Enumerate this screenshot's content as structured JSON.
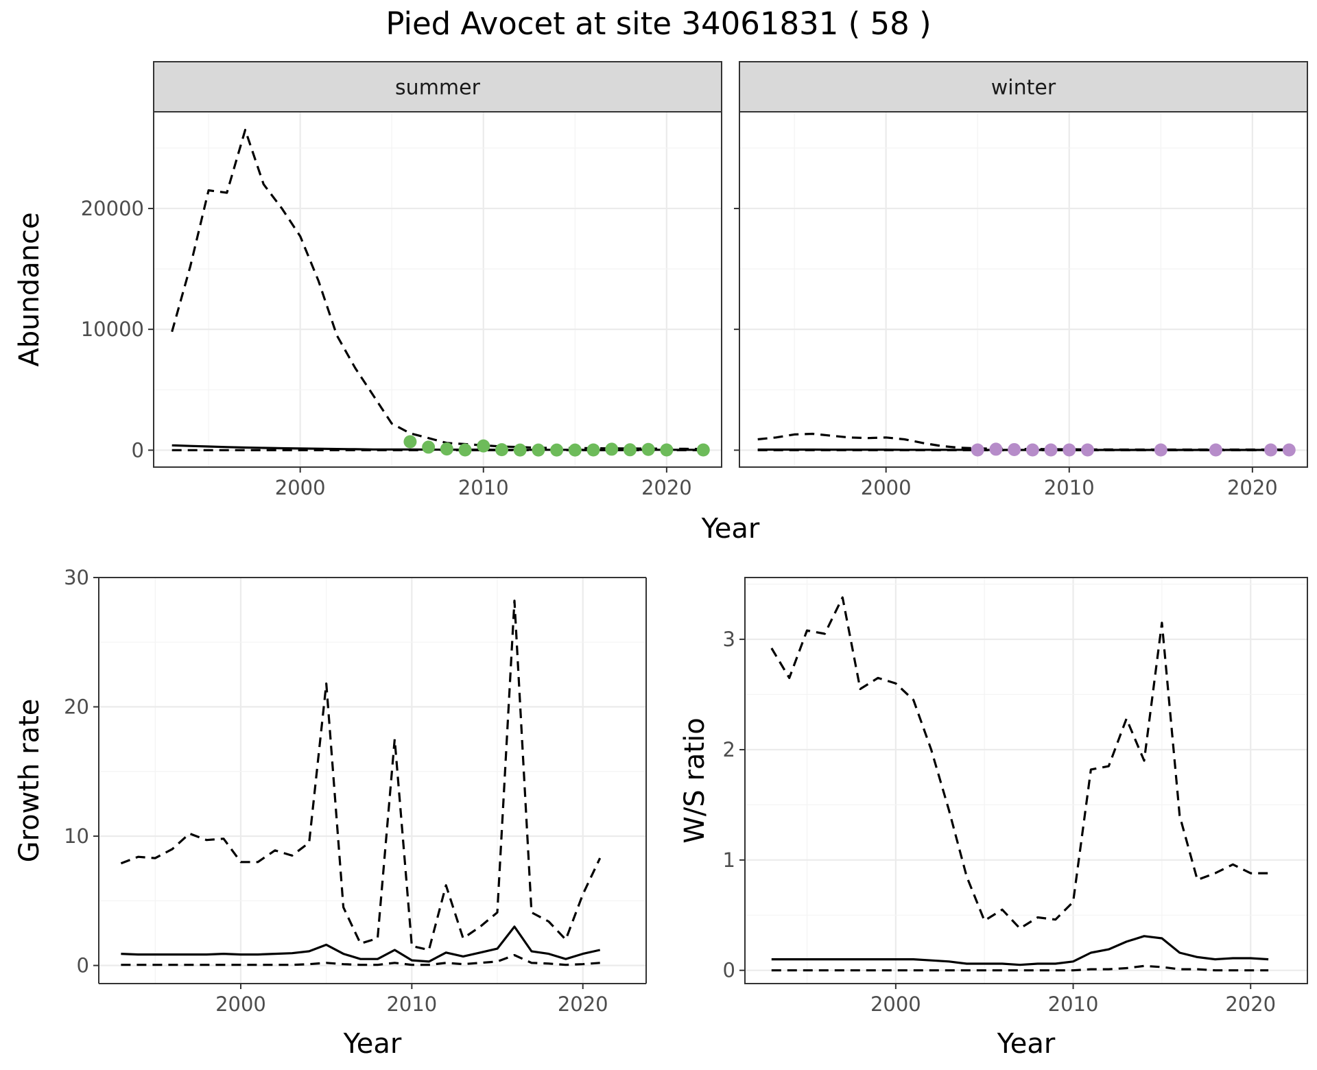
{
  "title": "Pied Avocet at site 34061831 ( 58 )",
  "colors": {
    "summer_points": "#6dbb5a",
    "winter_points": "#b68cc9"
  },
  "chart_data": [
    {
      "id": "abundance-summer",
      "type": "line",
      "facet": "summer",
      "ylabel": "Abundance",
      "xlabel": "Year",
      "xlim": [
        1992,
        2023
      ],
      "ylim": [
        -1400,
        28000
      ],
      "xticks": [
        2000,
        2010,
        2020
      ],
      "yticks": [
        0,
        10000,
        20000
      ],
      "grid": true,
      "x": [
        1993,
        1994,
        1995,
        1996,
        1997,
        1998,
        1999,
        2000,
        2001,
        2002,
        2003,
        2004,
        2005,
        2006,
        2007,
        2008,
        2009,
        2010,
        2011,
        2012,
        2013,
        2014,
        2015,
        2016,
        2017,
        2018,
        2019,
        2020,
        2021,
        2022
      ],
      "series": [
        {
          "role": "estimate",
          "values": [
            400,
            350,
            300,
            260,
            220,
            190,
            160,
            140,
            120,
            100,
            80,
            60,
            60,
            60,
            50,
            40,
            40,
            40,
            30,
            30,
            30,
            30,
            30,
            30,
            30,
            30,
            30,
            30,
            30,
            30
          ]
        },
        {
          "role": "upper",
          "values": [
            9800,
            15200,
            21500,
            21300,
            26500,
            22000,
            20000,
            17700,
            14000,
            9500,
            6800,
            4500,
            2200,
            1400,
            1000,
            600,
            500,
            400,
            300,
            250,
            200,
            180,
            170,
            160,
            150,
            140,
            130,
            120,
            110,
            100
          ]
        },
        {
          "role": "lower",
          "values": [
            0,
            0,
            0,
            0,
            0,
            0,
            0,
            0,
            0,
            0,
            0,
            0,
            0,
            0,
            0,
            0,
            0,
            0,
            0,
            0,
            0,
            0,
            0,
            0,
            0,
            0,
            0,
            0,
            0,
            0
          ]
        }
      ],
      "points": {
        "x": [
          2006,
          2007,
          2008,
          2009,
          2010,
          2011,
          2012,
          2013,
          2014,
          2015,
          2016,
          2017,
          2018,
          2019,
          2020,
          2022
        ],
        "y": [
          700,
          250,
          100,
          20,
          350,
          40,
          10,
          10,
          10,
          10,
          20,
          80,
          30,
          60,
          20,
          20
        ]
      }
    },
    {
      "id": "abundance-winter",
      "type": "line",
      "facet": "winter",
      "xlabel": "Year",
      "xlim": [
        1992,
        2023
      ],
      "ylim": [
        -1400,
        28000
      ],
      "xticks": [
        2000,
        2010,
        2020
      ],
      "grid": true,
      "x": [
        1993,
        1994,
        1995,
        1996,
        1997,
        1998,
        1999,
        2000,
        2001,
        2002,
        2003,
        2004,
        2005,
        2006,
        2007,
        2008,
        2009,
        2010,
        2011,
        2012,
        2013,
        2014,
        2015,
        2016,
        2017,
        2018,
        2019,
        2020,
        2021,
        2022
      ],
      "series": [
        {
          "role": "estimate",
          "values": [
            50,
            50,
            50,
            50,
            40,
            40,
            40,
            40,
            30,
            30,
            30,
            30,
            20,
            20,
            20,
            20,
            20,
            20,
            20,
            20,
            20,
            20,
            20,
            20,
            20,
            20,
            20,
            20,
            20,
            20
          ]
        },
        {
          "role": "upper",
          "values": [
            900,
            1050,
            1300,
            1350,
            1200,
            1050,
            1000,
            1050,
            900,
            600,
            350,
            200,
            150,
            120,
            100,
            90,
            80,
            70,
            60,
            60,
            50,
            50,
            50,
            50,
            50,
            50,
            50,
            50,
            50,
            50
          ]
        },
        {
          "role": "lower",
          "values": [
            0,
            0,
            0,
            0,
            0,
            0,
            0,
            0,
            0,
            0,
            0,
            0,
            0,
            0,
            0,
            0,
            0,
            0,
            0,
            0,
            0,
            0,
            0,
            0,
            0,
            0,
            0,
            0,
            0,
            0
          ]
        }
      ],
      "points": {
        "x": [
          2005,
          2006,
          2007,
          2008,
          2009,
          2010,
          2011,
          2015,
          2018,
          2021,
          2022
        ],
        "y": [
          20,
          80,
          50,
          20,
          20,
          20,
          20,
          20,
          20,
          20,
          20
        ]
      }
    },
    {
      "id": "growth-rate",
      "type": "line",
      "ylabel": "Growth rate",
      "xlabel": "Year",
      "xlim": [
        1991.7,
        2023.7
      ],
      "ylim": [
        -1.4,
        30
      ],
      "xticks": [
        2000,
        2010,
        2020
      ],
      "yticks": [
        0,
        10,
        20,
        30
      ],
      "grid": true,
      "x": [
        1993,
        1994,
        1995,
        1996,
        1997,
        1998,
        1999,
        2000,
        2001,
        2002,
        2003,
        2004,
        2005,
        2006,
        2007,
        2008,
        2009,
        2010,
        2011,
        2012,
        2013,
        2014,
        2015,
        2016,
        2017,
        2018,
        2019,
        2020,
        2021
      ],
      "series": [
        {
          "role": "estimate",
          "values": [
            0.9,
            0.85,
            0.85,
            0.85,
            0.85,
            0.85,
            0.9,
            0.85,
            0.85,
            0.9,
            0.95,
            1.1,
            1.6,
            0.9,
            0.5,
            0.5,
            1.2,
            0.4,
            0.3,
            1.0,
            0.7,
            1.0,
            1.3,
            3.0,
            1.1,
            0.9,
            0.5,
            0.9,
            1.2
          ]
        },
        {
          "role": "upper",
          "values": [
            7.9,
            8.4,
            8.3,
            9.0,
            10.2,
            9.7,
            9.8,
            8.0,
            8.0,
            8.9,
            8.5,
            9.5,
            21.8,
            4.5,
            1.7,
            2.1,
            17.5,
            1.5,
            1.2,
            6.2,
            2.1,
            3.0,
            4.1,
            28.2,
            4.1,
            3.4,
            2.0,
            5.5,
            8.3
          ]
        },
        {
          "role": "lower",
          "values": [
            0.05,
            0.05,
            0.05,
            0.05,
            0.05,
            0.05,
            0.05,
            0.05,
            0.05,
            0.05,
            0.05,
            0.1,
            0.2,
            0.1,
            0.05,
            0.05,
            0.2,
            0.05,
            0.05,
            0.2,
            0.1,
            0.2,
            0.3,
            0.8,
            0.2,
            0.15,
            0.05,
            0.1,
            0.2
          ]
        }
      ]
    },
    {
      "id": "ws-ratio",
      "type": "line",
      "ylabel": "W/S ratio",
      "xlabel": "Year",
      "xlim": [
        1991.5,
        2023.2
      ],
      "ylim": [
        -0.12,
        3.56
      ],
      "xticks": [
        2000,
        2010,
        2020
      ],
      "yticks": [
        0,
        1,
        2,
        3
      ],
      "grid": true,
      "x": [
        1993,
        1994,
        1995,
        1996,
        1997,
        1998,
        1999,
        2000,
        2001,
        2002,
        2003,
        2004,
        2005,
        2006,
        2007,
        2008,
        2009,
        2010,
        2011,
        2012,
        2013,
        2014,
        2015,
        2016,
        2017,
        2018,
        2019,
        2020,
        2021
      ],
      "series": [
        {
          "role": "estimate",
          "values": [
            0.1,
            0.1,
            0.1,
            0.1,
            0.1,
            0.1,
            0.1,
            0.1,
            0.1,
            0.09,
            0.08,
            0.06,
            0.06,
            0.06,
            0.05,
            0.06,
            0.06,
            0.08,
            0.16,
            0.19,
            0.26,
            0.31,
            0.29,
            0.16,
            0.12,
            0.1,
            0.11,
            0.11,
            0.1
          ]
        },
        {
          "role": "upper",
          "values": [
            2.92,
            2.65,
            3.08,
            3.05,
            3.38,
            2.55,
            2.65,
            2.6,
            2.45,
            2.0,
            1.45,
            0.85,
            0.45,
            0.55,
            0.38,
            0.48,
            0.46,
            0.62,
            1.82,
            1.85,
            2.28,
            1.9,
            3.15,
            1.4,
            0.82,
            0.88,
            0.96,
            0.88,
            0.88
          ]
        },
        {
          "role": "lower",
          "values": [
            0.0,
            0.0,
            0.0,
            0.0,
            0.0,
            0.0,
            0.0,
            0.0,
            0.0,
            0.0,
            0.0,
            0.0,
            0.0,
            0.0,
            0.0,
            0.0,
            0.0,
            0.0,
            0.01,
            0.01,
            0.02,
            0.04,
            0.03,
            0.01,
            0.01,
            0.0,
            0.0,
            0.0,
            0.0
          ]
        }
      ]
    }
  ]
}
